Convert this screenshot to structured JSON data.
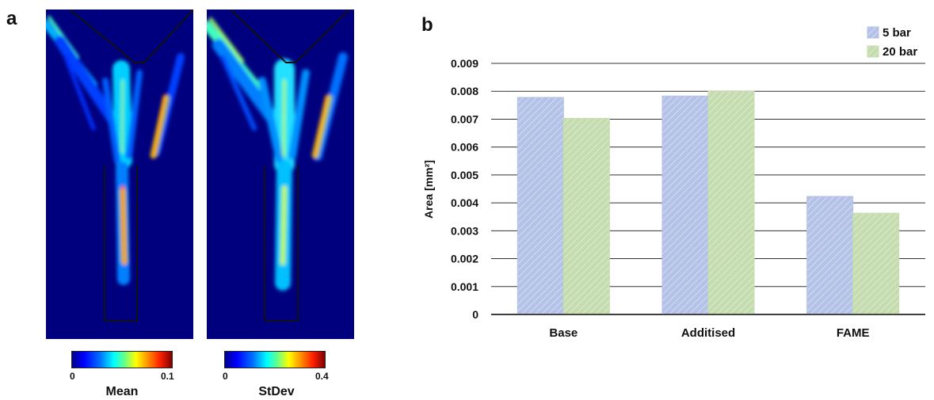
{
  "panel_a": {
    "label": "a",
    "maps": [
      {
        "caption": "Mean",
        "cbar_min": "0",
        "cbar_max": "0.1"
      },
      {
        "caption": "StDev",
        "cbar_min": "0",
        "cbar_max": "0.4"
      }
    ]
  },
  "panel_b": {
    "label": "b"
  },
  "chart_data": {
    "type": "bar",
    "categories": [
      "Base",
      "Additised",
      "FAME"
    ],
    "series": [
      {
        "name": "5 bar",
        "values": [
          0.00778,
          0.00783,
          0.00423
        ],
        "color": "#b4c2e8"
      },
      {
        "name": "20 bar",
        "values": [
          0.00703,
          0.008,
          0.00363
        ],
        "color": "#c4dcae"
      }
    ],
    "ylabel": "Area [mm²]",
    "ylim": [
      0,
      0.009
    ],
    "yticks": [
      "0",
      "0.001",
      "0.002",
      "0.003",
      "0.004",
      "0.005",
      "0.006",
      "0.007",
      "0.008",
      "0.009"
    ],
    "grid": true,
    "legend": "top-right"
  }
}
